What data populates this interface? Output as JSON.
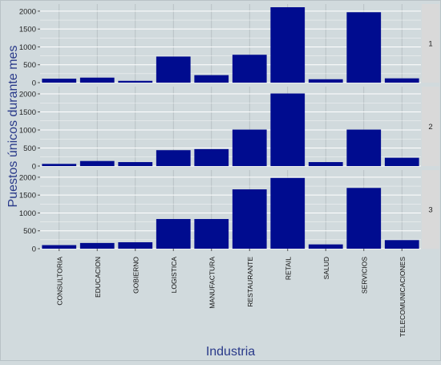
{
  "chart_data": {
    "type": "bar",
    "xlabel": "Industria",
    "ylabel": "Puestos únicos durante mes",
    "categories": [
      "CONSULTORIA",
      "EDUCACION",
      "GOBIERNO",
      "LOGISTICA",
      "MANUFACTURA",
      "RESTAURANTE",
      "RETAIL",
      "SALUD",
      "SERVICIOS",
      "TELECOMUNICACIONES"
    ],
    "yticks": [
      0,
      500,
      1000,
      1500,
      2000
    ],
    "ylim": [
      0,
      2200
    ],
    "facets": [
      {
        "strip": "1",
        "values": [
          110,
          140,
          50,
          730,
          210,
          780,
          2110,
          95,
          1970,
          120
        ]
      },
      {
        "strip": "2",
        "values": [
          60,
          140,
          110,
          440,
          470,
          1010,
          2010,
          110,
          1010,
          230
        ]
      },
      {
        "strip": "3",
        "values": [
          100,
          160,
          180,
          830,
          830,
          1660,
          1980,
          120,
          1700,
          240
        ]
      }
    ],
    "colors": {
      "bar": "#000c8f",
      "panel": "#d1dadd",
      "grid": "#ffffff",
      "strip": "#d9d9d9",
      "label": "#2a3a8a"
    },
    "grid": true
  }
}
